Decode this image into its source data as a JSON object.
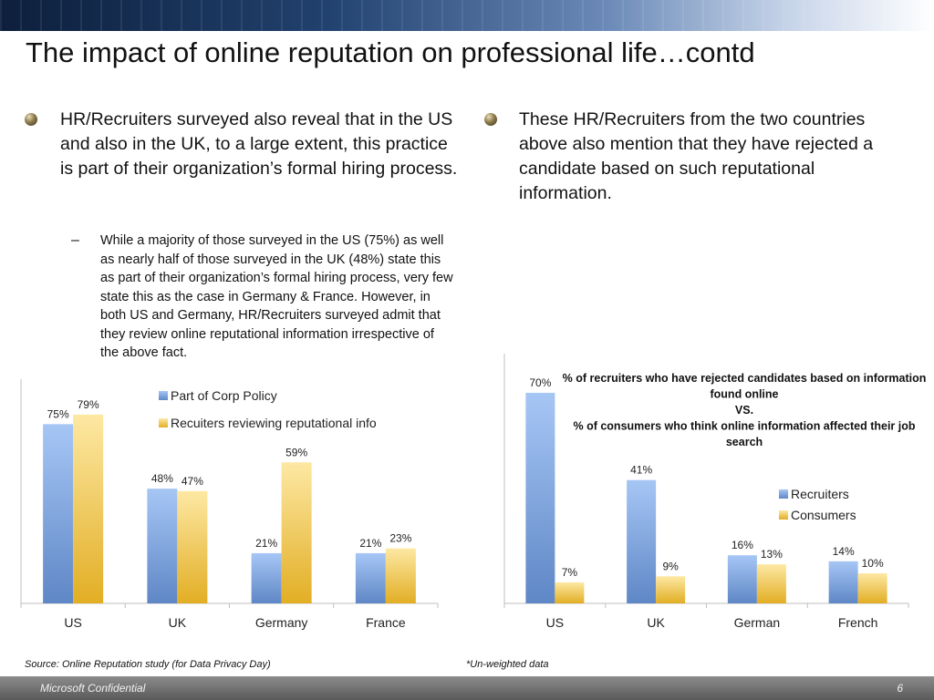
{
  "title": "The impact of online reputation on professional life…contd",
  "left_bullet": "HR/Recruiters surveyed also reveal that in the US and also in the UK, to a large extent, this practice is part of their organization’s formal hiring process.",
  "sub_dash": "–",
  "sub_bullet": "While a majority of those surveyed in the US (75%) as well as nearly half of those surveyed in the UK (48%) state this as part of their organization’s formal hiring process, very few state this as the case in Germany & France. However, in both US and Germany, HR/Recruiters surveyed admit that they review online reputational information irrespective of the above fact.",
  "right_bullet": "These HR/Recruiters from the two countries above also mention that they have rejected a candidate based on such reputational information.",
  "source": "Source: Online Reputation study (for Data Privacy Day)",
  "note": "*Un-weighted data",
  "confidential": "Microsoft Confidential",
  "page_number": "6",
  "colors": {
    "blue": "#7ba7e6",
    "yellow": "#f7d86a",
    "axis": "#bfbfbf"
  },
  "chart_data": [
    {
      "type": "bar",
      "categories": [
        "US",
        "UK",
        "Germany",
        "France"
      ],
      "series": [
        {
          "name": "Part of Corp Policy",
          "values": [
            75,
            48,
            21,
            21
          ],
          "labels": [
            "75%",
            "48%",
            "21%",
            "21%"
          ]
        },
        {
          "name": "Recuiters reviewing reputational info",
          "values": [
            79,
            47,
            59,
            23
          ],
          "labels": [
            "79%",
            "47%",
            "59%",
            "23%"
          ]
        }
      ],
      "ylim": [
        0,
        90
      ],
      "legend_position": "top-center"
    },
    {
      "type": "bar",
      "title_lines": [
        "% of recruiters who have rejected candidates based on information",
        "found online",
        "VS.",
        "% of consumers who think online information affected their job",
        "search"
      ],
      "categories": [
        "US",
        "UK",
        "German",
        "French"
      ],
      "series": [
        {
          "name": "Recruiters",
          "values": [
            70,
            41,
            16,
            14
          ],
          "labels": [
            "70%",
            "41%",
            "16%",
            "14%"
          ]
        },
        {
          "name": "Consumers",
          "values": [
            7,
            9,
            13,
            10
          ],
          "labels": [
            "7%",
            "9%",
            "13%",
            "10%"
          ]
        }
      ],
      "ylim": [
        0,
        80
      ],
      "legend_position": "right"
    }
  ]
}
